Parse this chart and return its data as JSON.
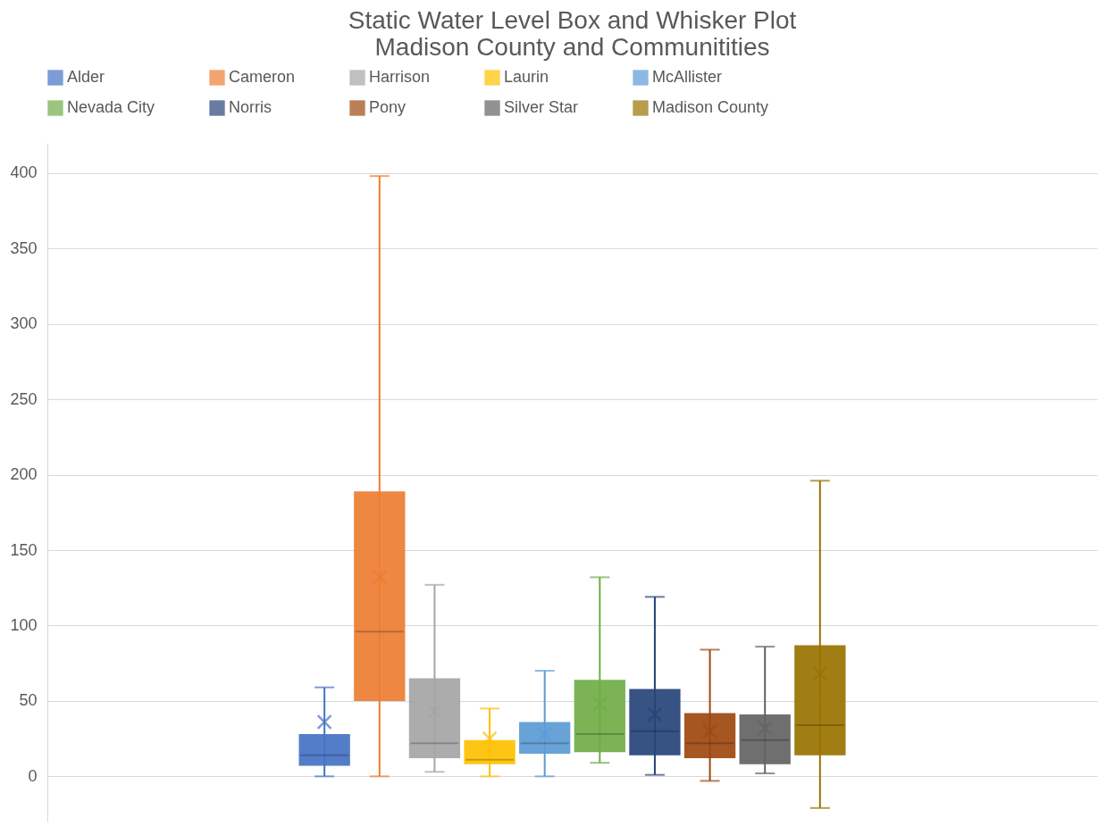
{
  "chart_data": {
    "type": "box",
    "title": "Static Water Level Box and Whisker Plot\nMadison County and Communitities",
    "categories": [
      null
    ],
    "ylim": [
      -30,
      420
    ],
    "yticks": [
      0,
      50,
      100,
      150,
      200,
      250,
      300,
      350,
      400
    ],
    "grid": "y",
    "legend": "top",
    "tick_labels": "y",
    "series": [
      {
        "name": "Alder",
        "color": "#4472c4",
        "boxes": [
          {
            "low": 0,
            "q1": 7,
            "median": 14,
            "q3": 28,
            "high": 59,
            "mean": 36
          }
        ]
      },
      {
        "name": "Cameron",
        "color": "#ed7d31",
        "boxes": [
          {
            "low": 0,
            "q1": 50,
            "median": 96,
            "q3": 189,
            "high": 398,
            "mean": 132
          }
        ]
      },
      {
        "name": "Harrison",
        "color": "#a5a5a5",
        "boxes": [
          {
            "low": 3,
            "q1": 12,
            "median": 22,
            "q3": 65,
            "high": 127,
            "mean": 43
          }
        ]
      },
      {
        "name": "Laurin",
        "color": "#ffc000",
        "boxes": [
          {
            "low": 0,
            "q1": 8,
            "median": 11,
            "q3": 24,
            "high": 45,
            "mean": 25
          }
        ]
      },
      {
        "name": "McAllister",
        "color": "#5b9bd5",
        "boxes": [
          {
            "low": 0,
            "q1": 15,
            "median": 22,
            "q3": 36,
            "high": 70,
            "mean": 28
          }
        ]
      },
      {
        "name": "Nevada City",
        "color": "#70ad47",
        "boxes": [
          {
            "low": 9,
            "q1": 16,
            "median": 28,
            "q3": 64,
            "high": 132,
            "mean": 48
          }
        ]
      },
      {
        "name": "Norris",
        "color": "#264478",
        "boxes": [
          {
            "low": 1,
            "q1": 14,
            "median": 30,
            "q3": 58,
            "high": 119,
            "mean": 41
          }
        ]
      },
      {
        "name": "Pony",
        "color": "#9e480e",
        "boxes": [
          {
            "low": -3,
            "q1": 12,
            "median": 22,
            "q3": 42,
            "high": 84,
            "mean": 30
          }
        ]
      },
      {
        "name": "Silver Star",
        "color": "#636363",
        "boxes": [
          {
            "low": 2,
            "q1": 8,
            "median": 24,
            "q3": 41,
            "high": 86,
            "mean": 32
          }
        ]
      },
      {
        "name": "Madison County",
        "color": "#997300",
        "boxes": [
          {
            "low": -21,
            "q1": 14,
            "median": 34,
            "q3": 87,
            "high": 196,
            "mean": 68
          }
        ]
      }
    ]
  }
}
